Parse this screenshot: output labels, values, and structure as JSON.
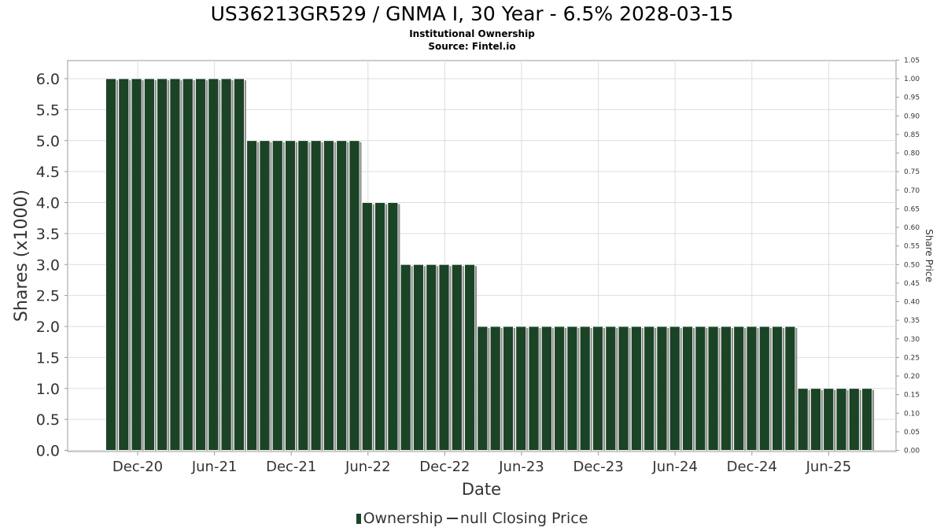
{
  "title": "US36213GR529 / GNMA I, 30 Year - 6.5% 2028-03-15",
  "subtitle": "Institutional Ownership",
  "source": "Source: Fintel.io",
  "legend": {
    "ownership": "Ownership",
    "price": "null Closing Price"
  },
  "colors": {
    "bar": "#1b4325",
    "bar_shadow": "#8c8c8c",
    "grid": "#dddddd",
    "text": "#333333"
  },
  "chart_data": {
    "type": "bar",
    "xlabel": "Date",
    "ylabel": "Shares (x1000)",
    "y2label": "Share Price",
    "ylim": [
      0,
      6.3
    ],
    "y2lim": [
      0,
      1.05
    ],
    "yticks": [
      "0.0",
      "0.5",
      "1.0",
      "1.5",
      "2.0",
      "2.5",
      "3.0",
      "3.5",
      "4.0",
      "4.5",
      "5.0",
      "5.5",
      "6.0"
    ],
    "y2ticks": [
      "0.00",
      "0.05",
      "0.10",
      "0.15",
      "0.20",
      "0.25",
      "0.30",
      "0.35",
      "0.40",
      "0.45",
      "0.50",
      "0.55",
      "0.60",
      "0.65",
      "0.70",
      "0.75",
      "0.80",
      "0.85",
      "0.90",
      "0.95",
      "1.00",
      "1.05"
    ],
    "xticks": [
      "Dec-20",
      "Jun-21",
      "Dec-21",
      "Jun-22",
      "Dec-22",
      "Jun-23",
      "Dec-23",
      "Jun-24",
      "Dec-24",
      "Jun-25"
    ],
    "grid": true,
    "legend_position": "bottom",
    "series": [
      {
        "name": "Ownership",
        "values": [
          6,
          6,
          6,
          6,
          6,
          6,
          6,
          6,
          6,
          6,
          6,
          5,
          5,
          5,
          5,
          5,
          5,
          5,
          5,
          5,
          4,
          4,
          4,
          3,
          3,
          3,
          3,
          3,
          3,
          2,
          2,
          2,
          2,
          2,
          2,
          2,
          2,
          2,
          2,
          2,
          2,
          2,
          2,
          2,
          2,
          2,
          2,
          2,
          2,
          2,
          2,
          2,
          2,
          2,
          1,
          1,
          1,
          1,
          1,
          1
        ]
      }
    ]
  }
}
